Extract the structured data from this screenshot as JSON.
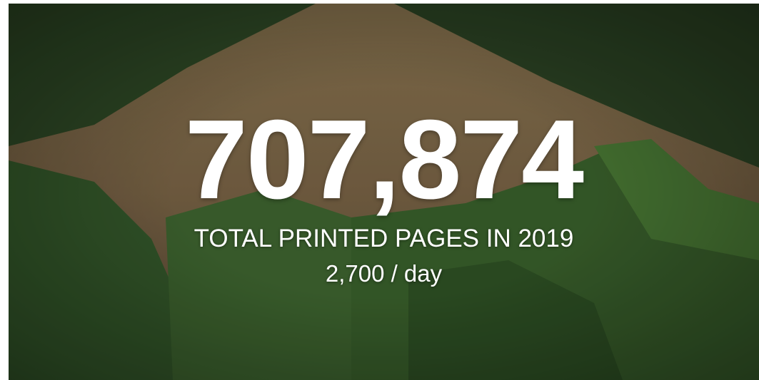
{
  "headline": {
    "number": "707,874",
    "label": "TOTAL PRINTED PAGES IN 2019",
    "rate": "2,700 / day"
  }
}
